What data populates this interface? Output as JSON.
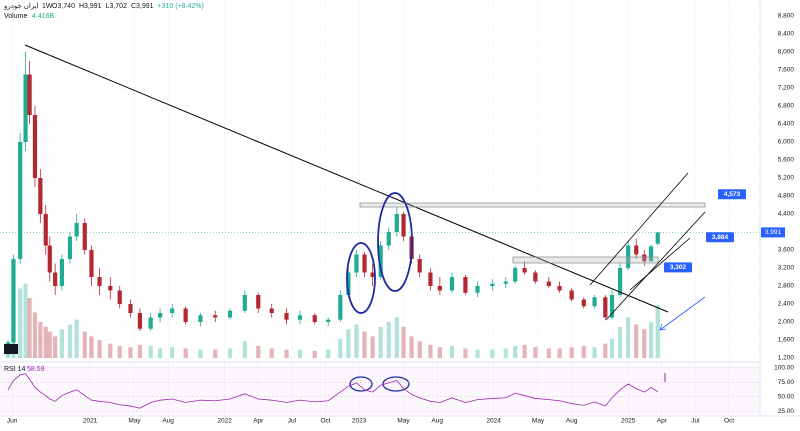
{
  "chart_data": [
    {
      "type": "candlestick",
      "symbol": "ایران خودرو",
      "interval": "1W",
      "ohlc_labels": [
        "O3,740",
        "H3,991",
        "L3,702",
        "C3,991",
        "+310 (+8.42%)"
      ],
      "volume_label": "Volume",
      "volume_value": "4.416B",
      "up_color": "#22ab94",
      "down_color": "#b22833",
      "xlim": [
        2020.33,
        2025.98
      ],
      "xticks": [
        {
          "value": 2020.42,
          "label": "Jun"
        },
        {
          "value": 2021,
          "label": "2021"
        },
        {
          "value": 2021.33,
          "label": "May"
        },
        {
          "value": 2021.58,
          "label": "Aug"
        },
        {
          "value": 2022,
          "label": "2022"
        },
        {
          "value": 2022.25,
          "label": "Apr"
        },
        {
          "value": 2022.5,
          "label": "Jul"
        },
        {
          "value": 2022.75,
          "label": "Oct"
        },
        {
          "value": 2023,
          "label": "2023"
        },
        {
          "value": 2023.33,
          "label": "May"
        },
        {
          "value": 2023.58,
          "label": "Aug"
        },
        {
          "value": 2024,
          "label": "2024"
        },
        {
          "value": 2024.33,
          "label": "May"
        },
        {
          "value": 2024.58,
          "label": "Aug"
        },
        {
          "value": 2025,
          "label": "2025"
        },
        {
          "value": 2025.25,
          "label": "Apr"
        },
        {
          "value": 2025.5,
          "label": "Jul"
        },
        {
          "value": 2025.75,
          "label": "Oct"
        }
      ],
      "ylim": [
        1111,
        8978
      ],
      "yticks": [
        {
          "value": 8800,
          "label": "8,800"
        },
        {
          "value": 8400,
          "label": "8,400"
        },
        {
          "value": 8000,
          "label": "8,000"
        },
        {
          "value": 7600,
          "label": "7,600"
        },
        {
          "value": 7200,
          "label": "7,200"
        },
        {
          "value": 6800,
          "label": "6,800"
        },
        {
          "value": 6400,
          "label": "6,400"
        },
        {
          "value": 6000,
          "label": "6,000"
        },
        {
          "value": 5600,
          "label": "5,600"
        },
        {
          "value": 5200,
          "label": "5,200"
        },
        {
          "value": 4800,
          "label": "4,800"
        },
        {
          "value": 4400,
          "label": "4,400"
        },
        {
          "value": 3600,
          "label": "3,600"
        },
        {
          "value": 3200,
          "label": "3,200"
        },
        {
          "value": 2800,
          "label": "2,800"
        },
        {
          "value": 2400,
          "label": "2,400"
        },
        {
          "value": 2000,
          "label": "2,000"
        },
        {
          "value": 1600,
          "label": "1,600"
        },
        {
          "value": 1200,
          "label": "1,200"
        }
      ],
      "price_labels": [
        {
          "value": 4573,
          "label": "4,573"
        },
        {
          "value": 3884,
          "label": "3,884"
        },
        {
          "value": 3302,
          "label": "3,302"
        }
      ],
      "last_price": {
        "value": 3991,
        "label": "3,991"
      },
      "x": [
        2020.39,
        2020.43,
        2020.48,
        2020.52,
        2020.55,
        2020.59,
        2020.63,
        2020.67,
        2020.7,
        2020.74,
        2020.79,
        2020.85,
        2020.9,
        2020.96,
        2021.01,
        2021.07,
        2021.15,
        2021.22,
        2021.3,
        2021.37,
        2021.45,
        2021.52,
        2021.61,
        2021.71,
        2021.82,
        2021.93,
        2022.04,
        2022.15,
        2022.25,
        2022.35,
        2022.46,
        2022.56,
        2022.67,
        2022.77,
        2022.86,
        2022.92,
        2022.98,
        2023.04,
        2023.1,
        2023.16,
        2023.22,
        2023.28,
        2023.33,
        2023.39,
        2023.45,
        2023.53,
        2023.6,
        2023.69,
        2023.79,
        2023.88,
        2023.99,
        2024.09,
        2024.16,
        2024.23,
        2024.31,
        2024.41,
        2024.49,
        2024.58,
        2024.67,
        2024.75,
        2024.83,
        2024.88,
        2024.94,
        2025.0,
        2025.06,
        2025.12,
        2025.17,
        2025.22
      ],
      "open": [
        1300,
        1550,
        3400,
        6000,
        7500,
        6600,
        5200,
        4400,
        3700,
        3100,
        2800,
        3400,
        3900,
        4200,
        3600,
        3000,
        2800,
        2700,
        2400,
        2200,
        1850,
        2100,
        2200,
        2300,
        2000,
        2150,
        2100,
        2250,
        2600,
        2300,
        2200,
        2050,
        2150,
        2000,
        2050,
        2600,
        3100,
        3500,
        3100,
        3000,
        3700,
        4000,
        4400,
        3900,
        3400,
        3100,
        2800,
        2700,
        3000,
        2650,
        2800,
        2850,
        2900,
        3200,
        3100,
        2900,
        2800,
        2700,
        2500,
        2350,
        2550,
        2100,
        2600,
        3200,
        3700,
        3500,
        3350,
        3740
      ],
      "high": [
        1600,
        3500,
        6200,
        8000,
        7800,
        6800,
        5400,
        4600,
        3900,
        3300,
        3500,
        4000,
        4400,
        4300,
        3700,
        3200,
        3000,
        2800,
        2500,
        2300,
        2200,
        2300,
        2400,
        2350,
        2200,
        2250,
        2300,
        2700,
        2650,
        2400,
        2300,
        2250,
        2200,
        2100,
        2700,
        3200,
        3600,
        3550,
        3300,
        3800,
        4100,
        4550,
        4450,
        3950,
        3500,
        3200,
        3000,
        3100,
        3050,
        2900,
        2950,
        3000,
        3250,
        3350,
        3150,
        3000,
        2900,
        2750,
        2550,
        2600,
        2600,
        2700,
        3300,
        3800,
        3850,
        3600,
        3720,
        3991
      ],
      "low": [
        1250,
        1500,
        3300,
        5800,
        6400,
        5000,
        4200,
        3500,
        2900,
        2600,
        2700,
        3300,
        3800,
        3500,
        2800,
        2600,
        2500,
        2300,
        2100,
        1800,
        1800,
        2000,
        2100,
        1950,
        1900,
        2000,
        2050,
        2200,
        2200,
        2100,
        1950,
        1950,
        1950,
        1900,
        2000,
        2550,
        3000,
        3000,
        2800,
        2950,
        3600,
        3900,
        3800,
        3300,
        3000,
        2700,
        2600,
        2650,
        2600,
        2550,
        2700,
        2750,
        2850,
        3050,
        2850,
        2750,
        2650,
        2450,
        2300,
        2300,
        2050,
        2050,
        2550,
        3150,
        3400,
        3250,
        3350,
        3702
      ],
      "close": [
        1550,
        3400,
        6000,
        7500,
        6600,
        5200,
        4400,
        3700,
        3100,
        2800,
        3400,
        3900,
        4200,
        3600,
        3000,
        2800,
        2700,
        2400,
        2200,
        1850,
        2100,
        2200,
        2300,
        2000,
        2150,
        2100,
        2250,
        2600,
        2300,
        2200,
        2050,
        2150,
        2000,
        2050,
        2600,
        3100,
        3500,
        3100,
        3000,
        3700,
        4000,
        4400,
        3900,
        3400,
        3100,
        2800,
        2700,
        3000,
        2650,
        2800,
        2850,
        2900,
        3200,
        3100,
        2900,
        2800,
        2700,
        2500,
        2350,
        2550,
        2100,
        2600,
        3200,
        3700,
        3500,
        3350,
        3681,
        3991
      ],
      "volume": [
        1.2,
        4.5,
        5.8,
        6.2,
        5.0,
        3.8,
        3.0,
        2.6,
        2.2,
        1.8,
        2.4,
        2.8,
        3.2,
        2.2,
        1.8,
        1.5,
        1.2,
        1.0,
        0.9,
        1.1,
        1.0,
        0.8,
        0.9,
        0.8,
        0.7,
        0.7,
        0.8,
        1.4,
        1.0,
        0.8,
        0.7,
        0.7,
        0.6,
        0.7,
        1.6,
        2.4,
        2.8,
        2.2,
        1.8,
        2.6,
        3.0,
        3.4,
        2.6,
        1.8,
        1.4,
        1.1,
        0.9,
        1.0,
        0.8,
        0.7,
        0.7,
        0.8,
        1.0,
        1.1,
        0.9,
        0.8,
        0.8,
        0.9,
        1.0,
        0.9,
        1.2,
        1.6,
        2.6,
        3.4,
        2.8,
        2.4,
        3.0,
        4.416
      ]
    },
    {
      "type": "line",
      "title": "RSI 14",
      "last_value": "58.59",
      "color": "#9c27b0",
      "ylim": [
        20,
        105
      ],
      "yticks": [
        {
          "value": 100,
          "label": "100.00"
        },
        {
          "value": 75,
          "label": "75.00"
        },
        {
          "value": 50,
          "label": "50.00"
        },
        {
          "value": 25,
          "label": "25.00"
        }
      ],
      "values": [
        62,
        78,
        88,
        90,
        80,
        66,
        58,
        52,
        46,
        42,
        52,
        58,
        62,
        52,
        44,
        42,
        40,
        36,
        34,
        30,
        40,
        44,
        46,
        40,
        44,
        43,
        46,
        55,
        46,
        44,
        40,
        44,
        41,
        43,
        58,
        68,
        74,
        62,
        58,
        70,
        74,
        78,
        64,
        54,
        48,
        42,
        40,
        48,
        40,
        45,
        47,
        48,
        56,
        52,
        47,
        45,
        43,
        38,
        35,
        41,
        34,
        48,
        62,
        72,
        64,
        58,
        66,
        58.59
      ]
    }
  ]
}
